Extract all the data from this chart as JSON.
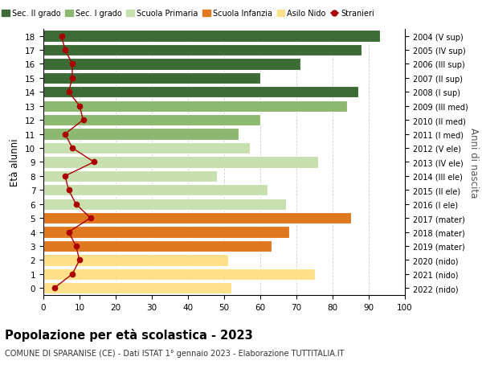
{
  "ages": [
    0,
    1,
    2,
    3,
    4,
    5,
    6,
    7,
    8,
    9,
    10,
    11,
    12,
    13,
    14,
    15,
    16,
    17,
    18
  ],
  "years": [
    "2022 (nido)",
    "2021 (nido)",
    "2020 (nido)",
    "2019 (mater)",
    "2018 (mater)",
    "2017 (mater)",
    "2016 (I ele)",
    "2015 (II ele)",
    "2014 (III ele)",
    "2013 (IV ele)",
    "2012 (V ele)",
    "2011 (I med)",
    "2010 (II med)",
    "2009 (III med)",
    "2008 (I sup)",
    "2007 (II sup)",
    "2006 (III sup)",
    "2005 (IV sup)",
    "2004 (V sup)"
  ],
  "bar_values": [
    52,
    75,
    51,
    63,
    68,
    85,
    67,
    62,
    48,
    76,
    57,
    54,
    60,
    84,
    87,
    60,
    71,
    88,
    93
  ],
  "stranieri": [
    3,
    8,
    10,
    9,
    7,
    13,
    9,
    7,
    6,
    14,
    8,
    6,
    11,
    10,
    7,
    8,
    8,
    6,
    5
  ],
  "bar_colors": {
    "asilo_nido": "#FFE08A",
    "scuola_infanzia": "#E07820",
    "scuola_primaria": "#C8DFB0",
    "sec_I_grado": "#8CB870",
    "sec_II_grado": "#3D6B35"
  },
  "color_map": [
    0,
    0,
    0,
    1,
    1,
    1,
    2,
    2,
    2,
    2,
    2,
    3,
    3,
    3,
    4,
    4,
    4,
    4,
    4
  ],
  "stranieri_color": "#AA0000",
  "title": "Popolazione per età scolastica - 2023",
  "subtitle": "COMUNE DI SPARANISE (CE) - Dati ISTAT 1° gennaio 2023 - Elaborazione TUTTITALIA.IT",
  "ylabel": "Età alunni",
  "ylabel2": "Anni di nascita",
  "xlim": [
    0,
    100
  ],
  "xticks": [
    0,
    10,
    20,
    30,
    40,
    50,
    60,
    70,
    80,
    90,
    100
  ],
  "legend_labels": [
    "Sec. II grado",
    "Sec. I grado",
    "Scuola Primaria",
    "Scuola Infanzia",
    "Asilo Nido",
    "Stranieri"
  ],
  "legend_colors": [
    "#3D6B35",
    "#8CB870",
    "#C8DFB0",
    "#E07820",
    "#FFE08A",
    "#AA0000"
  ],
  "bg_color": "#FFFFFF",
  "grid_color": "#CCCCCC"
}
